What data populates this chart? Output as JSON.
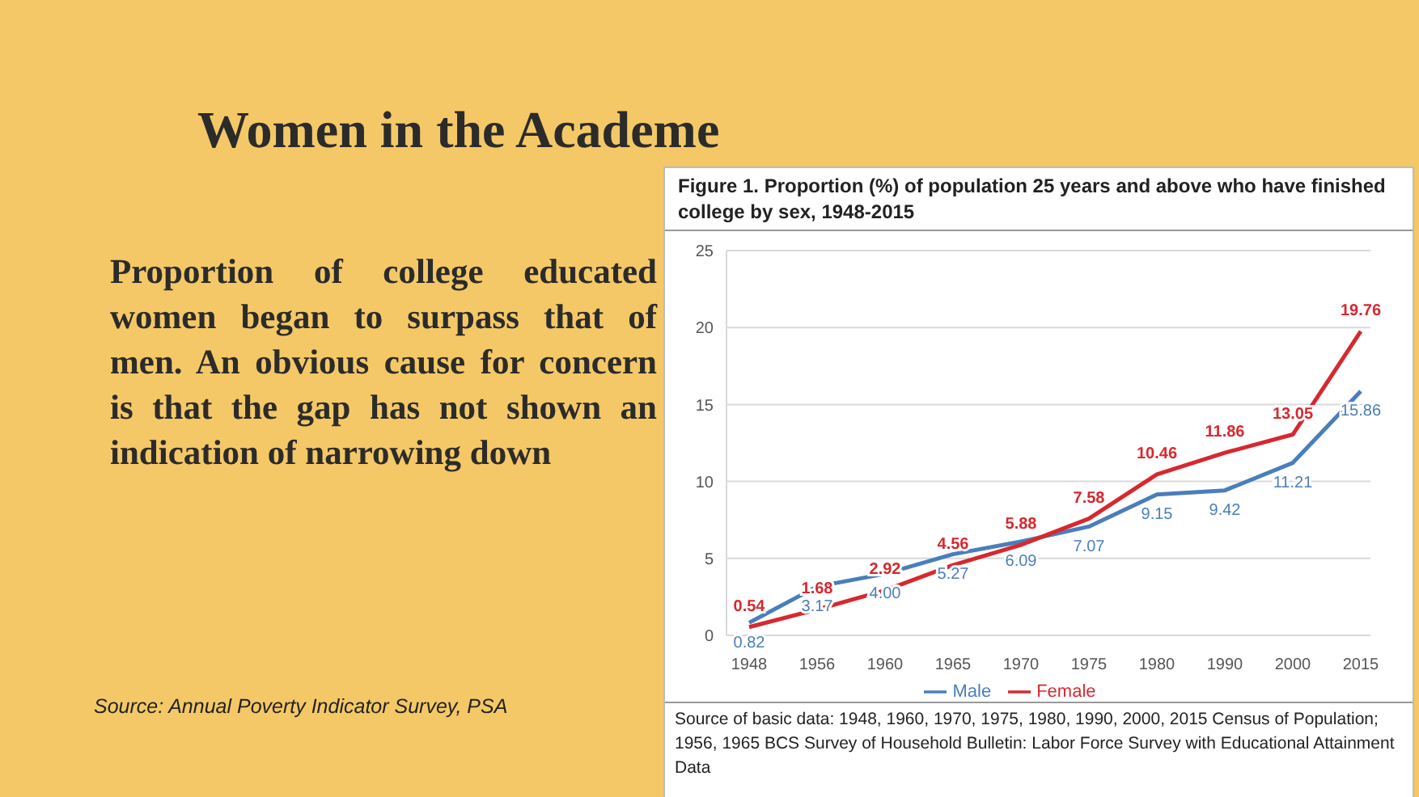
{
  "chart_data": {
    "type": "line",
    "title": "Women in the Academe",
    "subtitle": "Figure 1. Proportion (%) of population 25 years and above who have finished college by sex, 1948-2015",
    "categories": [
      "1948",
      "1956",
      "1960",
      "1965",
      "1970",
      "1975",
      "1980",
      "1990",
      "2000",
      "2015"
    ],
    "series": [
      {
        "name": "Male",
        "color": "#4a7ebb",
        "values": [
          0.82,
          3.17,
          4.0,
          5.27,
          6.09,
          7.07,
          9.15,
          9.42,
          11.21,
          15.86
        ],
        "value_labels": [
          "0.82",
          "3.17",
          "4.00",
          "5.27",
          "6.09",
          "7.07",
          "9.15",
          "9.42",
          "11.21",
          "15.86"
        ]
      },
      {
        "name": "Female",
        "color": "#d7282f",
        "values": [
          0.54,
          1.68,
          2.92,
          4.56,
          5.88,
          7.58,
          10.46,
          11.86,
          13.05,
          19.76
        ]
      }
    ],
    "ylim": [
      0,
      25
    ],
    "yticks": [
      0,
      5,
      10,
      15,
      20,
      25
    ],
    "grid": "y",
    "legend": "bottom",
    "data_labels": true,
    "marker": "none",
    "line_style": "solid",
    "annotations": [
      "Proportion of college educated women began to surpass that of men. An obvious cause for concern is that the gap has not shown an indication of narrowing down",
      "Source: Annual Poverty Indicator Survey, PSA",
      "Source of basic data:  1948, 1960, 1970, 1975, 1980, 1990, 2000, 2015 Census of Population; 1956, 1965 BCS Survey of Household Bulletin: Labor Force Survey with Educational Attainment Data"
    ]
  }
}
